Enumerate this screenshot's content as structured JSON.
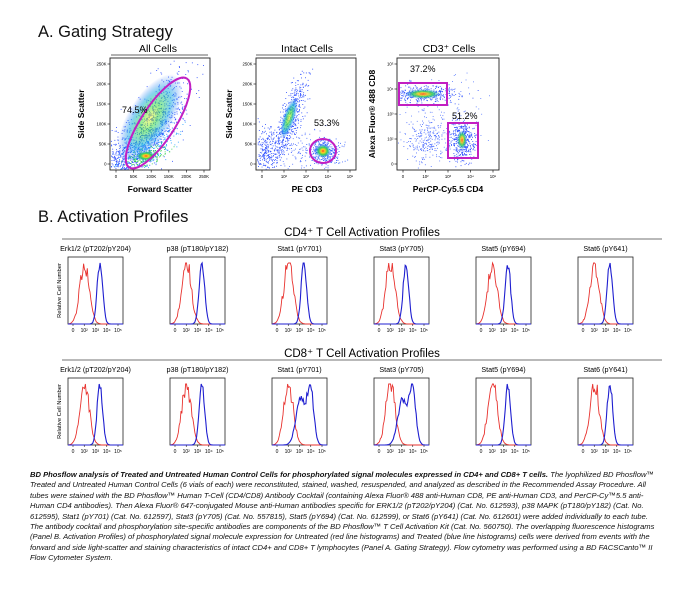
{
  "panel_a": {
    "title": "A. Gating Strategy",
    "plots": [
      {
        "title": "All Cells",
        "xlabel": "Forward Scatter",
        "ylabel": "Side Scatter",
        "gates": [
          "74.5%"
        ],
        "xticks": [
          "0",
          "50K",
          "100K",
          "150K",
          "200K",
          "250K"
        ],
        "yticks": [
          "0",
          "50K",
          "100K",
          "150K",
          "200K",
          "250K"
        ]
      },
      {
        "title": "Intact Cells",
        "xlabel": "PE CD3",
        "ylabel": "Side Scatter",
        "gates": [
          "53.3%"
        ],
        "xticks": [
          "0",
          "10²",
          "10³",
          "10⁴",
          "10⁵"
        ],
        "yticks": [
          "0",
          "50K",
          "100K",
          "150K",
          "200K",
          "250K"
        ]
      },
      {
        "title": "CD3⁺ Cells",
        "xlabel": "PerCP-Cy5.5 CD4",
        "ylabel": "Alexa Fluor® 488 CD8",
        "gates": [
          "37.2%",
          "51.2%"
        ],
        "xticks": [
          "0",
          "10²",
          "10³",
          "10⁴",
          "10⁵"
        ],
        "yticks": [
          "0",
          "10²",
          "10³",
          "10⁴",
          "10⁵"
        ]
      }
    ]
  },
  "panel_b": {
    "title": "B. Activation Profiles",
    "ylabel": "Relative Cell Number",
    "xticks": [
      "0",
      "10²",
      "10³",
      "10⁴",
      "10⁵"
    ],
    "rows": [
      {
        "title": "CD4⁺ T Cell Activation Profiles",
        "plots": [
          "Erk1/2 (pT202/pY204)",
          "p38 (pT180/pY182)",
          "Stat1 (pY701)",
          "Stat3 (pY705)",
          "Stat5 (pY694)",
          "Stat6 (pY641)"
        ]
      },
      {
        "title": "CD8⁺ T Cell Activation Profiles",
        "plots": [
          "Erk1/2 (pT202/pY204)",
          "p38 (pT180/pY182)",
          "Stat1 (pY701)",
          "Stat3 (pY705)",
          "Stat5 (pY694)",
          "Stat6 (pY641)"
        ]
      }
    ]
  },
  "legend_colors": {
    "untreated": "#e8322e",
    "treated": "#1f1fd0",
    "gate": "#c21fc2"
  },
  "caption": {
    "bold": "BD Phosflow analysis of Treated and Untreated Human Control Cells for phosphorylated signal molecules expressed in CD4+ and CD8+ T cells.",
    "body": "The lyophilized BD Phosflow™ Treated and Untreated Human Control Cells (6 vials of each) were reconstituted, stained, washed, resuspended, and analyzed as described in the Recommended Assay Procedure. All tubes were stained with the BD Phosflow™ Human T-Cell (CD4/CD8) Antibody Cocktail (containing Alexa Fluor® 488 anti-Human CD8, PE anti-Human CD3, and PerCP-Cy™5.5 anti-Human CD4 antibodies). Then Alexa Fluor® 647-conjugated Mouse anti-Human antibodies specific for ERK1/2 (pT202/pY204) (Cat. No. 612593), p38 MAPK (pT180/pY182) (Cat. No. 612595), Stat1 (pY701) (Cat. No. 612597), Stat3 (pY705) (Cat. No. 557815), Stat5 (pY694) (Cat. No. 612599), or Stat6 (pY641) (Cat. No. 612601) were added individually to each tube. The antibody cocktail and phosphorylation site-specific antibodies are components of the BD Phosflow™ T Cell Activation Kit (Cat. No. 560750). The overlapping fluorescence histograms (Panel B. Activation Profiles) of phosphorylated signal molecule expression for Untreated (red line histograms) and Treated (blue line histograms) cells were derived from events with the forward and side light-scatter and staining characteristics of intact CD4+ and CD8+ T lymphocytes (Panel A. Gating Strategy). Flow cytometry was performed using a BD FACSCanto™ II Flow Cytometer System."
  }
}
